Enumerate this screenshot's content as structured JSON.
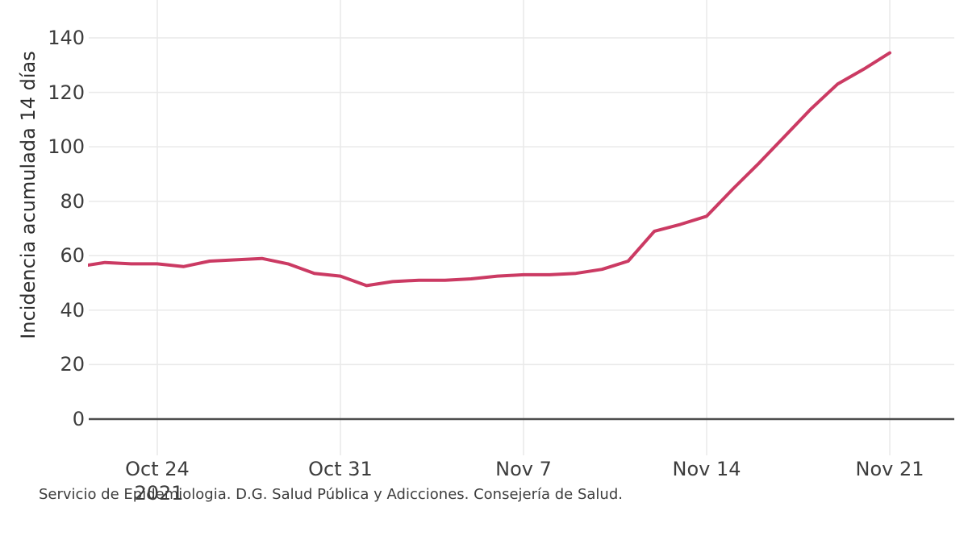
{
  "chart_data": {
    "type": "line",
    "title": "",
    "xlabel": "",
    "ylabel": "Incidencia acumulada 14 días",
    "ylim": [
      0,
      140
    ],
    "grid": true,
    "legend": "none",
    "line_color": "#cb3a63",
    "x": [
      "Oct 21",
      "Oct 22",
      "Oct 23",
      "Oct 24",
      "Oct 25",
      "Oct 26",
      "Oct 27",
      "Oct 28",
      "Oct 29",
      "Oct 30",
      "Oct 31",
      "Nov 1",
      "Nov 2",
      "Nov 3",
      "Nov 4",
      "Nov 5",
      "Nov 6",
      "Nov 7",
      "Nov 8",
      "Nov 9",
      "Nov 10",
      "Nov 11",
      "Nov 12",
      "Nov 13",
      "Nov 14",
      "Nov 15",
      "Nov 16",
      "Nov 17",
      "Nov 18",
      "Nov 19",
      "Nov 20",
      "Nov 21"
    ],
    "values": [
      56,
      57.5,
      57,
      57,
      56,
      58,
      58.5,
      59,
      57,
      53.5,
      52.5,
      49,
      50.5,
      51,
      51,
      51.5,
      52.5,
      53,
      53,
      53.5,
      55,
      58,
      69,
      71.5,
      74.5,
      84.5,
      94,
      104,
      114,
      123,
      128.5,
      134.5
    ],
    "y_ticks": [
      0,
      20,
      40,
      60,
      80,
      100,
      120,
      140
    ],
    "x_ticks": [
      {
        "label": "Oct 24",
        "index": 3
      },
      {
        "label": "Oct 31",
        "index": 10
      },
      {
        "label": "Nov 7",
        "index": 17
      },
      {
        "label": "Nov 14",
        "index": 24
      },
      {
        "label": "Nov 21",
        "index": 31
      }
    ],
    "year_label": "2021"
  },
  "caption": {
    "text": "Servicio de Epidemiologia. D.G. Salud Pública y Adicciones. Consejería de Salud."
  },
  "colors": {
    "line": "#cb3a63",
    "grid": "#e9e9e9",
    "axis": "#4d4d4d",
    "text": "#3d3d3d"
  }
}
